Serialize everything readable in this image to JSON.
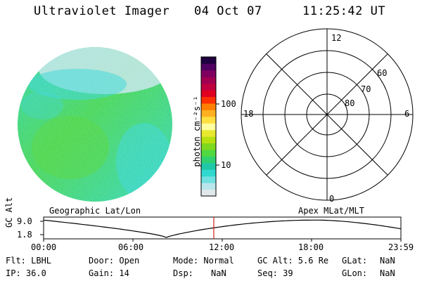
{
  "header": {
    "title": "Ultraviolet Imager",
    "date": "04 Oct 07",
    "time": "11:25:42 UT"
  },
  "colorbar": {
    "unit_label": "photon cm⁻²s⁻¹",
    "ticks": [
      {
        "label": "100",
        "value": 100
      },
      {
        "label": "10",
        "value": 10
      }
    ],
    "colors": [
      "#e0e8ec",
      "#b8e6ec",
      "#70e0e0",
      "#30d8d0",
      "#20c8a8",
      "#30d070",
      "#50d840",
      "#7ed820",
      "#b8e010",
      "#e8e830",
      "#ffffa0",
      "#ffe040",
      "#ffb020",
      "#ff8000",
      "#ff3000",
      "#e00020",
      "#c00040",
      "#a00050",
      "#800060",
      "#500060",
      "#200040"
    ]
  },
  "polar_grid": {
    "mlt_labels": {
      "top": "12",
      "left": "18",
      "right": "6",
      "bottom": "0"
    },
    "lat_labels": [
      "60",
      "70",
      "80"
    ]
  },
  "plot_labels": {
    "left": "Geographic Lat/Lon",
    "right": "Apex MLat/MLT"
  },
  "timeline": {
    "y_label": "GC Alt",
    "y_ticks": [
      "9.0",
      "1.8"
    ],
    "x_ticks": [
      "00:00",
      "06:00",
      "12:00",
      "18:00",
      "23:59"
    ],
    "current_hour": 11.43,
    "curve_color": "#000000",
    "marker_color": "#d02020"
  },
  "metadata": {
    "flt": "Flt: LBHL",
    "ip": "IP: 36.0",
    "door": "Door: Open",
    "gain": "Gain: 14",
    "mode": "Mode: Normal",
    "dsp_label": "Dsp:",
    "dsp_value": "NaN",
    "gc_alt": "GC Alt: 5.6 Re",
    "seq": "Seq: 39",
    "glat_label": "GLat:",
    "glat_value": "NaN",
    "glon_label": "GLon:",
    "glon_value": "NaN"
  },
  "image_colors": {
    "base": "#34d88a",
    "green": "#4ed860",
    "cyan": "#40d8d8",
    "pale": "#c8e8ec"
  }
}
